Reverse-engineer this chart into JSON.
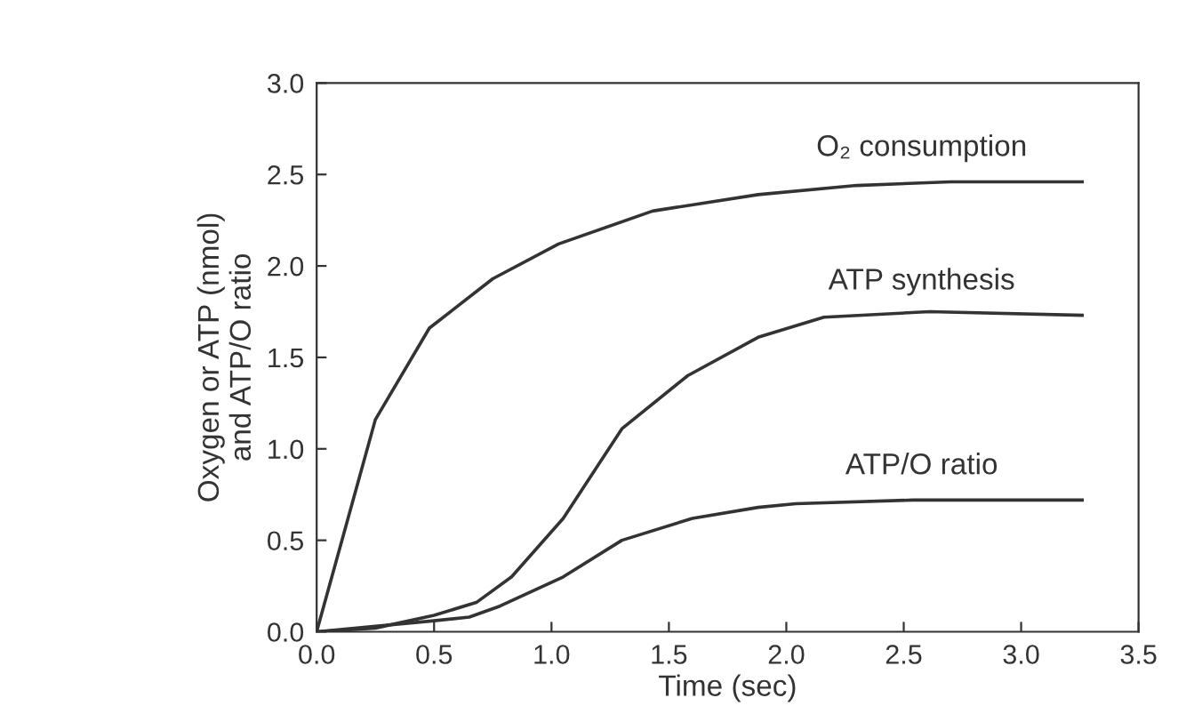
{
  "chart_data": {
    "type": "line",
    "xlabel": "Time (sec)",
    "ylabel": "Oxygen or ATP (nmol)\nand ATP/O ratio",
    "xlim": [
      0,
      3.5
    ],
    "ylim": [
      0,
      3.0
    ],
    "xticks": [
      {
        "value": 0,
        "label": "0.0"
      },
      0.5,
      {
        "value": 1,
        "label": "1.0"
      },
      1.5,
      {
        "value": 2,
        "label": "2.0"
      },
      2.5,
      {
        "value": 3,
        "label": "3.0"
      },
      3.5
    ],
    "yticks": [
      {
        "value": 0,
        "label": "0.0"
      },
      0.5,
      {
        "value": 1,
        "label": "1.0"
      },
      1.5,
      {
        "value": 2,
        "label": "2.0"
      },
      2.5,
      {
        "value": 3,
        "label": "3.0"
      }
    ],
    "grid": false,
    "legend": false,
    "marker": "none",
    "line_style": "solid",
    "series": [
      {
        "name": "O₂ consumption",
        "color": "#333333",
        "x": [
          0,
          0.25,
          0.48,
          0.75,
          1.03,
          1.43,
          1.88,
          2.3,
          2.7,
          3.26
        ],
        "values": [
          0,
          1.16,
          1.66,
          1.93,
          2.12,
          2.3,
          2.39,
          2.44,
          2.46,
          2.46
        ]
      },
      {
        "name": "ATP synthesis",
        "color": "#333333",
        "x": [
          0,
          0.25,
          0.5,
          0.68,
          0.83,
          1.05,
          1.3,
          1.58,
          1.88,
          2.16,
          2.61,
          3.26
        ],
        "values": [
          0,
          0.02,
          0.09,
          0.16,
          0.3,
          0.62,
          1.11,
          1.4,
          1.61,
          1.72,
          1.75,
          1.73
        ]
      },
      {
        "name": "ATP/O ratio",
        "color": "#333333",
        "x": [
          0,
          0.5,
          0.65,
          0.78,
          1.05,
          1.3,
          1.6,
          1.88,
          2.04,
          2.54,
          3.26
        ],
        "values": [
          0,
          0.06,
          0.08,
          0.14,
          0.3,
          0.5,
          0.62,
          0.68,
          0.7,
          0.72,
          0.72
        ]
      }
    ]
  }
}
